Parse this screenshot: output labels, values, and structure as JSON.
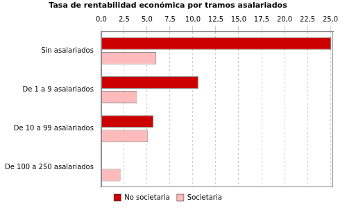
{
  "chart_data": {
    "type": "bar",
    "orientation": "horizontal",
    "title": "Tasa de rentabilidad económica por tramos asalariados",
    "categories": [
      "Sin asalariados",
      "De 1 a 9 asalariados",
      "De 10 a 99 asalariados",
      "De 100 a 250 asalariados"
    ],
    "series": [
      {
        "name": "No societaria",
        "color": "#cc0000",
        "values": [
          25.1,
          10.6,
          5.7,
          null
        ]
      },
      {
        "name": "Societaria",
        "color": "#ffbbbb",
        "values": [
          6.0,
          3.9,
          5.1,
          2.1
        ]
      }
    ],
    "xlim": [
      0,
      25.3
    ],
    "xticks": [
      {
        "value": 0,
        "label": "0,0"
      },
      {
        "value": 2.5,
        "label": "2,5"
      },
      {
        "value": 5,
        "label": "5,0"
      },
      {
        "value": 7.5,
        "label": "7,5"
      },
      {
        "value": 10,
        "label": "10,0"
      },
      {
        "value": 12.5,
        "label": "12,5"
      },
      {
        "value": 15,
        "label": "15,0"
      },
      {
        "value": 17.5,
        "label": "17,5"
      },
      {
        "value": 20,
        "label": "20,0"
      },
      {
        "value": 22.5,
        "label": "22,5"
      },
      {
        "value": 25,
        "label": "25,0"
      }
    ],
    "grid": true,
    "legend": "bottom"
  }
}
